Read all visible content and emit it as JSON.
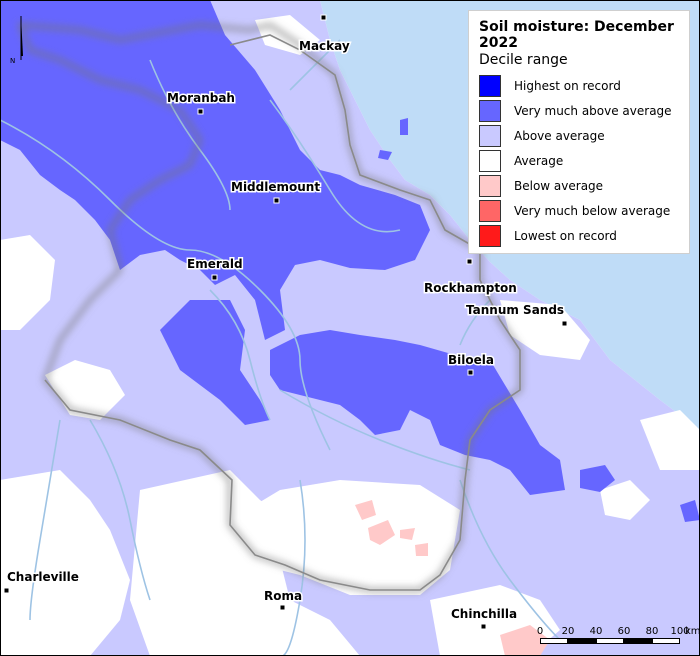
{
  "legend": {
    "title": "Soil moisture: December 2022",
    "subtitle": "Decile range",
    "items": [
      {
        "label": "Highest on record",
        "color": "#0000ff"
      },
      {
        "label": "Very much above average",
        "color": "#6666ff"
      },
      {
        "label": "Above average",
        "color": "#c9c9ff"
      },
      {
        "label": "Average",
        "color": "#ffffff"
      },
      {
        "label": "Below average",
        "color": "#ffc9c9"
      },
      {
        "label": "Very much below average",
        "color": "#ff6666"
      },
      {
        "label": "Lowest on record",
        "color": "#ff1a1a"
      }
    ]
  },
  "towns": {
    "mackay": "Mackay",
    "moranbah": "Moranbah",
    "middlemount": "Middlemount",
    "emerald": "Emerald",
    "rockhampton": "Rockhampton",
    "tannum_sands": "Tannum Sands",
    "biloela": "Biloela",
    "charleville": "Charleville",
    "roma": "Roma",
    "chinchilla": "Chinchilla"
  },
  "scale_bar": {
    "ticks": [
      "0",
      "20",
      "40",
      "60",
      "80",
      "100"
    ],
    "unit": "km"
  },
  "north_arrow": {
    "label": "N"
  },
  "colors": {
    "ocean": "#bfdcf7",
    "boundary": "#888888",
    "river": "#9ec3e4"
  }
}
